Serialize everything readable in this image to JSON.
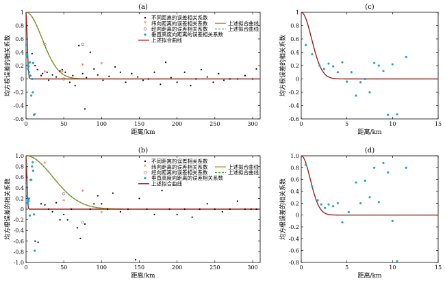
{
  "colors": {
    "black_pts": "#000000",
    "lat_pts": "#e8552a",
    "lon_pts": "#c2607a",
    "vert_pts": "#1fa3c8",
    "fit_olive": "#b8a040",
    "fit_dashed": "#3c9a3c",
    "fit_red": "#a01e14"
  },
  "chart_data": [
    {
      "panel": "a",
      "title": "(a)",
      "type": "scatter",
      "xlabel": "距离/km",
      "ylabel": "均方根误差的相关系数",
      "xlim": [
        0,
        310
      ],
      "ylim": [
        -0.6,
        1.0
      ],
      "xticks": [
        "0",
        "50",
        "100",
        "150",
        "200",
        "250",
        "300"
      ],
      "yticks": [
        "-0.6",
        "-0.4",
        "-0.2",
        "0",
        "0.2",
        "0.4",
        "0.6",
        "0.8",
        "1"
      ],
      "legend": [
        {
          "label": "不同距离的误差相关系数",
          "marker": "dot"
        },
        {
          "label": "纬向距离的误差相关系数",
          "marker": "star"
        },
        {
          "label": "上述拟合曲线",
          "marker": "line-olive"
        },
        {
          "label": "经向距离的误差相关系数",
          "marker": "circle"
        },
        {
          "label": "上述拟合曲线",
          "marker": "line-dashed"
        },
        {
          "label": "垂直高度向距离的误差相关系数",
          "marker": "dot-blue"
        },
        {
          "label": "上述拟合曲线",
          "marker": "line-red"
        }
      ],
      "series": [
        {
          "marker": "dot",
          "x": [
            8,
            12,
            15,
            20,
            22,
            28,
            30,
            35,
            40,
            45,
            48,
            52,
            58,
            62,
            65,
            70,
            75,
            78,
            80,
            85,
            90,
            95,
            102,
            110,
            118,
            125,
            132,
            140,
            148,
            155,
            162,
            170,
            178,
            185,
            192,
            200,
            210,
            218,
            225,
            232,
            240,
            248,
            255,
            262,
            270,
            280,
            290,
            300,
            305
          ],
          "y": [
            0.38,
            0.2,
            0.14,
            0.05,
            0.08,
            0.1,
            -0.02,
            0.06,
            0.03,
            0.12,
            0.14,
            0.1,
            -0.05,
            0.05,
            -0.1,
            0.5,
            0.08,
            -0.45,
            0.02,
            0.4,
            0.15,
            0.06,
            -0.02,
            0.04,
            0.18,
            0.1,
            -0.05,
            0.08,
            0.03,
            -0.02,
            0.0,
            0.1,
            -0.08,
            0.25,
            0.02,
            -0.05,
            0.1,
            -0.1,
            0.0,
            0.14,
            0.03,
            -0.05,
            0.08,
            -0.02,
            0.0,
            0.0,
            0.05,
            0.0,
            0.15
          ]
        },
        {
          "marker": "star",
          "x": [
            25,
            48,
            75,
            100
          ],
          "y": [
            0.1,
            0.1,
            0.2,
            0.22
          ]
        },
        {
          "marker": "circle",
          "x": [
            25,
            50,
            75
          ],
          "y": [
            0.52,
            0.0,
            0.52
          ]
        },
        {
          "marker": "dot-blue",
          "x": [
            0.5,
            1,
            1.5,
            2,
            2.5,
            3,
            3.5,
            4,
            5,
            6,
            7,
            8,
            9,
            9.5,
            10.5,
            11.5
          ],
          "y": [
            0.51,
            0.33,
            0.37,
            0.2,
            0.15,
            0.23,
            0.19,
            0.1,
            0.25,
            0.05,
            -0.25,
            0.0,
            -0.2,
            0.24,
            -0.54,
            -0.53
          ]
        }
      ],
      "fits": [
        {
          "name": "olive",
          "L": 30
        },
        {
          "name": "dashed",
          "L": 30
        },
        {
          "name": "red",
          "L": 2.2
        }
      ]
    },
    {
      "panel": "b",
      "title": "(b)",
      "type": "scatter",
      "xlabel": "距离/km",
      "ylabel": "均方根误差的相关系数",
      "xlim": [
        0,
        310
      ],
      "ylim": [
        -1.0,
        1.0
      ],
      "xticks": [
        "0",
        "50",
        "100",
        "150",
        "200",
        "250",
        "300"
      ],
      "yticks": [
        "-1.0",
        "-0.8",
        "-0.6",
        "-0.4",
        "-0.2",
        "0",
        "0.2",
        "0.4",
        "0.6",
        "0.8",
        "1.0"
      ],
      "legend": [
        {
          "label": "不同距离的误差相关系数",
          "marker": "dot"
        },
        {
          "label": "纬向距离的误差相关系数",
          "marker": "star"
        },
        {
          "label": "上述拟合曲线",
          "marker": "line-olive"
        },
        {
          "label": "经向距离的误差相关系数",
          "marker": "circle"
        },
        {
          "label": "上述拟合曲线",
          "marker": "line-dashed"
        },
        {
          "label": "垂直高度向距离的误差相关系数",
          "marker": "dot-blue"
        },
        {
          "label": "上述拟合曲线",
          "marker": "line-red"
        }
      ],
      "series": [
        {
          "marker": "dot",
          "x": [
            12,
            16,
            20,
            25,
            30,
            35,
            40,
            45,
            50,
            55,
            60,
            68,
            72,
            78,
            85,
            90,
            95,
            100,
            108,
            115,
            125,
            135,
            145,
            150,
            160,
            170,
            180,
            190,
            200,
            210,
            220,
            230,
            240,
            250,
            260,
            270,
            280,
            290,
            298,
            305
          ],
          "y": [
            -0.6,
            -0.62,
            0.1,
            0.08,
            0.0,
            -0.05,
            0.12,
            -0.2,
            -0.1,
            -0.2,
            0.0,
            -0.35,
            -0.55,
            -0.28,
            0.0,
            0.1,
            0.25,
            0.1,
            0.0,
            0.3,
            -0.05,
            0.0,
            -0.95,
            0.2,
            0.0,
            -0.1,
            0.35,
            0.0,
            -0.1,
            0.0,
            -0.15,
            0.0,
            0.1,
            0.0,
            -0.05,
            0.0,
            0.15,
            0.0,
            0.0,
            0.0
          ]
        },
        {
          "marker": "star",
          "x": [
            25,
            50,
            75,
            100
          ],
          "y": [
            0.85,
            0.15,
            0.33,
            -0.08
          ]
        },
        {
          "marker": "circle",
          "x": [
            50,
            75
          ],
          "y": [
            0.29,
            -0.25
          ]
        },
        {
          "marker": "dot-blue",
          "x": [
            0.5,
            1,
            1.5,
            2,
            2.5,
            3,
            3.5,
            4,
            5,
            6,
            7,
            8,
            9,
            9.5,
            10.5,
            11.5
          ],
          "y": [
            0.85,
            0.45,
            0.25,
            0.12,
            0.1,
            0.18,
            0.15,
            0.2,
            -0.12,
            0.55,
            0.55,
            0.8,
            0.88,
            0.72,
            -0.1,
            -0.78
          ]
        }
      ],
      "fits": [
        {
          "name": "olive",
          "L": 50
        },
        {
          "name": "dashed",
          "L": 50
        },
        {
          "name": "red",
          "L": 1.6
        }
      ]
    },
    {
      "panel": "c",
      "title": "(c)",
      "type": "scatter",
      "xlabel": "距离/km",
      "ylabel": "均方根误差的相关系数",
      "xlim": [
        0,
        15
      ],
      "ylim": [
        -0.6,
        1.0
      ],
      "xticks": [
        "0",
        "5",
        "10",
        "15"
      ],
      "yticks": [
        "-0.6",
        "-0.4",
        "-0.2",
        "0",
        "0.2",
        "0.4",
        "0.6",
        "0.8",
        "1"
      ],
      "series": [
        {
          "marker": "dot-blue",
          "x": [
            0.5,
            1.2,
            2.0,
            2.5,
            3.0,
            3.5,
            4.0,
            4.5,
            5.0,
            5.5,
            6.0,
            6.5,
            7.0,
            7.5,
            8.0,
            8.5,
            9.0,
            9.5,
            10.0,
            10.5,
            11.5
          ],
          "y": [
            0.51,
            0.37,
            0.2,
            0.15,
            0.23,
            0.19,
            0.1,
            0.25,
            -0.04,
            0.1,
            -0.25,
            -0.05,
            0.0,
            -0.2,
            0.24,
            0.2,
            0.12,
            -0.54,
            0.22,
            -0.53,
            0.33
          ]
        }
      ],
      "fits": [
        {
          "name": "red",
          "L": 1.6
        }
      ]
    },
    {
      "panel": "d",
      "title": "(d)",
      "type": "scatter",
      "xlabel": "距离/km",
      "ylabel": "均方根误差的相关系数",
      "xlim": [
        0,
        15
      ],
      "ylim": [
        -0.8,
        1.0
      ],
      "xticks": [
        "0",
        "5",
        "10",
        "15"
      ],
      "yticks": [
        "-0.8",
        "-0.6",
        "-0.4",
        "-0.2",
        "0",
        "0.2",
        "0.4",
        "0.6",
        "0.8",
        "1.0"
      ],
      "series": [
        {
          "marker": "dot-blue",
          "x": [
            0.5,
            1.2,
            1.8,
            2.2,
            2.6,
            3.0,
            3.5,
            4.0,
            4.5,
            5.2,
            6.0,
            6.5,
            7.0,
            7.5,
            8.0,
            8.5,
            9.0,
            9.5,
            10.0,
            10.5,
            11.5
          ],
          "y": [
            0.85,
            0.48,
            0.25,
            0.18,
            0.12,
            0.18,
            0.15,
            0.2,
            -0.12,
            0.05,
            0.55,
            0.2,
            0.58,
            0.3,
            0.8,
            0.22,
            0.88,
            0.72,
            -0.1,
            -0.78,
            0.8
          ]
        }
      ],
      "fits": [
        {
          "name": "red",
          "L": 1.4
        }
      ]
    }
  ]
}
